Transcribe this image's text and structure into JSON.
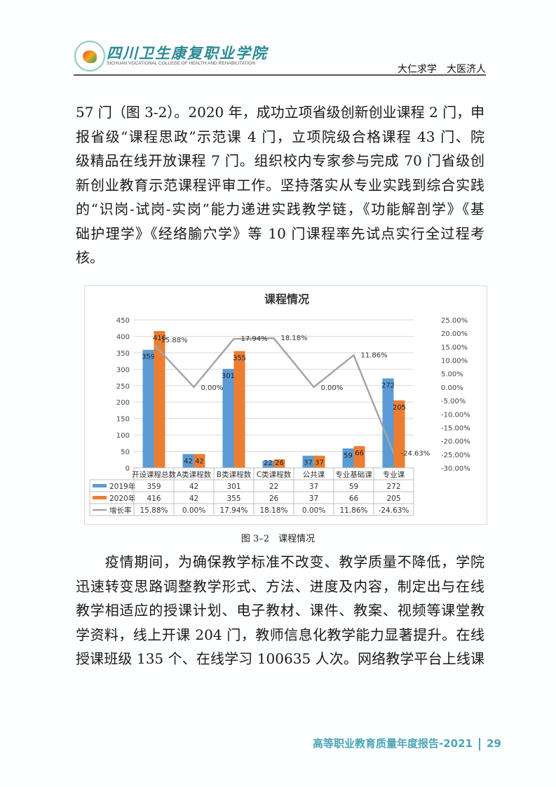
{
  "header": {
    "school_name": "四川卫生康复职业学院",
    "school_name_en": "SICHUAN VOCATIONAL COLLEGE OF HEALTH AND REHABILITATION",
    "motto": "大仁求学　大医济人"
  },
  "paragraph1": [
    "57 门（图 3-2）。2020 年，成功立项省级创新创业课程 2 门，申",
    "报省级“课程思政”示范课 4 门，立项院级合格课程 43 门、院",
    "级精品在线开放课程 7 门。组织校内专家参与完成 70 门省级创",
    "新创业教育示范课程评审工作。坚持落实从专业实践到综合实践",
    "的“识岗-试岗-实岗”能力递进实践教学链，《功能解剖学》《基",
    "础护理学》《经络腧穴学》等 10 门课程率先试点实行全过程考",
    "核。"
  ],
  "caption": "图 3–2　课程情况",
  "paragraph2": [
    "　　疫情期间，为确保教学标准不改变、教学质量不降低，学院",
    "迅速转变思路调整教学形式、方法、进度及内容，制定出与在线",
    "教学相适应的授课计划、电子教材、课件、教案、视频等课堂教",
    "学资料，线上开课 204 门，教师信息化教学能力显著提升。在线",
    "授课班级 135 个、在线学习 100635 人次。网络教学平台上线课"
  ],
  "footer": {
    "report": "高等职业教育质量年度报告-2021",
    "page": "29"
  },
  "chart_data": {
    "type": "bar",
    "title": "课程情况",
    "categories": [
      "开设课程总数",
      "A类课程数",
      "B类课程数",
      "C类课程数",
      "公共课",
      "专业基础课",
      "专业课"
    ],
    "series": [
      {
        "name": "2019年",
        "type": "bar",
        "axis": "left",
        "color": "#5b9bd5",
        "values": [
          359,
          42,
          301,
          22,
          37,
          59,
          272
        ]
      },
      {
        "name": "2020年",
        "type": "bar",
        "axis": "left",
        "color": "#ed7d31",
        "values": [
          416,
          42,
          355,
          26,
          37,
          66,
          205
        ]
      },
      {
        "name": "增长率",
        "type": "line",
        "axis": "right",
        "color": "#a5a5a5",
        "values": [
          15.88,
          0.0,
          17.94,
          18.18,
          0.0,
          11.86,
          -24.63
        ],
        "labels": [
          "15.88%",
          "0.00%",
          "17.94%",
          "18.18%",
          "0.00%",
          "11.86%",
          "-24.63%"
        ]
      }
    ],
    "left_axis": {
      "ylim": [
        0,
        450
      ],
      "ticks": [
        "0",
        "50",
        "100",
        "150",
        "200",
        "250",
        "300",
        "350",
        "400",
        "450"
      ]
    },
    "right_axis": {
      "ylim": [
        -30,
        25
      ],
      "ticks": [
        "-30.00%",
        "-25.00%",
        "-20.00%",
        "-15.00%",
        "-10.00%",
        "-5.00%",
        "0.00%",
        "5.00%",
        "10.00%",
        "15.00%",
        "20.00%",
        "25.00%"
      ]
    },
    "grid": true,
    "legend": "data-table-bottom"
  }
}
